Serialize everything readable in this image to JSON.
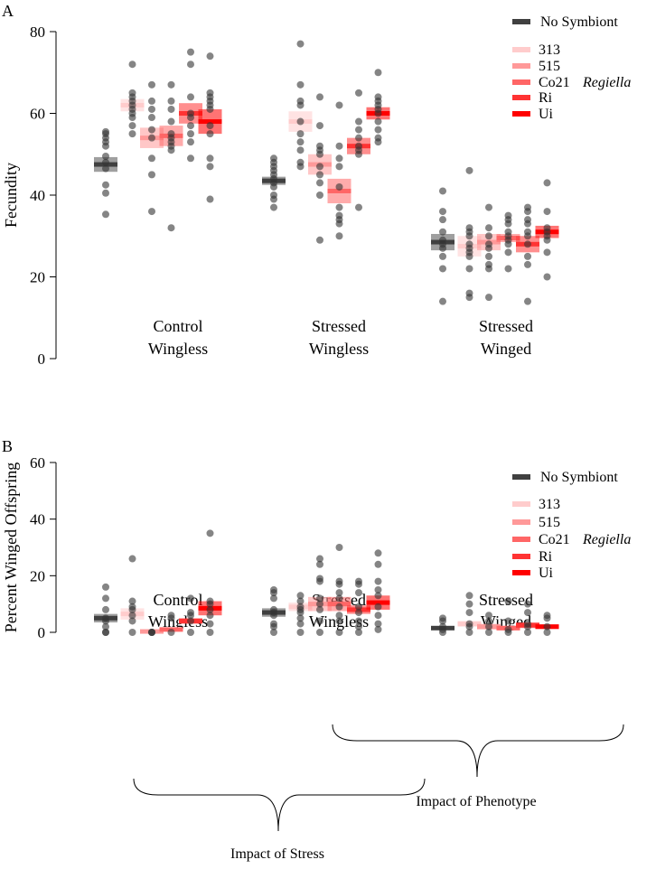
{
  "colors": {
    "No Symbiont": "#404040",
    "313": "#ffcccc",
    "515": "#ff9999",
    "Co21": "#ff6666",
    "Ri": "#ff3333",
    "Ui": "#ff0000"
  },
  "annotations": {
    "stress": "Impact of Stress",
    "phenotype": "Impact of Phenotype"
  },
  "chart_data": [
    {
      "type": "scatter",
      "panel": "A",
      "title": "",
      "ylabel": "Fecundity",
      "xlabel": "",
      "ylim": [
        0,
        80
      ],
      "yticks": [
        0,
        20,
        40,
        60,
        80
      ],
      "categories": [
        [
          "Control",
          "Wingless"
        ],
        [
          "Stressed",
          "Wingless"
        ],
        [
          "Stressed",
          "Winged"
        ]
      ],
      "legend": {
        "placement": "top-right",
        "entries": [
          "No Symbiont",
          "313",
          "515",
          "Co21",
          "Ri",
          "Ui"
        ],
        "group_label": "Regiella"
      },
      "series": [
        {
          "name": "No Symbiont",
          "means": [
            47.5,
            43.5,
            28.5
          ],
          "se": [
            1.8,
            1,
            2
          ],
          "points": [
            [
              55.5,
              55,
              54,
              53,
              52,
              49.5,
              48,
              46.5,
              42.5,
              40.5,
              35.3
            ],
            [
              49,
              48,
              47,
              46,
              45,
              44,
              43,
              42,
              40,
              39,
              37
            ],
            [
              41,
              36,
              34,
              31,
              29,
              28,
              27,
              25,
              22,
              14
            ]
          ]
        },
        {
          "name": "313",
          "means": [
            62,
            58,
            27.5
          ],
          "se": [
            1.5,
            2.5,
            2.5
          ],
          "points": [
            [
              72,
              65,
              64,
              63,
              62,
              61,
              60,
              59,
              57,
              55
            ],
            [
              77,
              67,
              63,
              62,
              58,
              55,
              53,
              51,
              48,
              47
            ],
            [
              46,
              32,
              31,
              30,
              28,
              27,
              26,
              25,
              22,
              16,
              15
            ]
          ]
        },
        {
          "name": "515",
          "means": [
            54,
            47.5,
            28.5
          ],
          "se": [
            2.5,
            2.5,
            2
          ],
          "points": [
            [
              67,
              63,
              61,
              59,
              56,
              54,
              49,
              45,
              36
            ],
            [
              64,
              57,
              52,
              51,
              50,
              47,
              45,
              43,
              40,
              29
            ],
            [
              37,
              32,
              30,
              28,
              27,
              25,
              23,
              22,
              15
            ]
          ]
        },
        {
          "name": "Co21",
          "means": [
            54.5,
            41,
            29.5
          ],
          "se": [
            2.5,
            3,
            1
          ],
          "points": [
            [
              67,
              63,
              61,
              58,
              55,
              54,
              53,
              52,
              51,
              32
            ],
            [
              62,
              52,
              49,
              47,
              42,
              37,
              35,
              34,
              33,
              30
            ],
            [
              35,
              34,
              33,
              31,
              30,
              29,
              28,
              26,
              22
            ]
          ]
        },
        {
          "name": "Ri",
          "means": [
            60,
            52,
            28
          ],
          "se": [
            2.5,
            2,
            2
          ],
          "points": [
            [
              75,
              72,
              64,
              60,
              59,
              57,
              55,
              53,
              49
            ],
            [
              65,
              58,
              56,
              54,
              52,
              51,
              50,
              37
            ],
            [
              37,
              36,
              34,
              33,
              31,
              30,
              28,
              25,
              23,
              14
            ]
          ]
        },
        {
          "name": "Ui",
          "means": [
            58,
            60,
            31
          ],
          "se": [
            3,
            1.5,
            1.5
          ],
          "points": [
            [
              74,
              65,
              64,
              63,
              62,
              61,
              57,
              55,
              49,
              47,
              39
            ],
            [
              70,
              64,
              63,
              62,
              61,
              60,
              58,
              56,
              54,
              53
            ],
            [
              43,
              36,
              32,
              31,
              30,
              29,
              26,
              20
            ]
          ]
        }
      ]
    },
    {
      "type": "scatter",
      "panel": "B",
      "title": "",
      "ylabel": "Percent Winged Offspring",
      "xlabel": "",
      "ylim": [
        0,
        60
      ],
      "yticks": [
        0,
        20,
        40,
        60
      ],
      "categories": [
        [
          "Control",
          "Wingless"
        ],
        [
          "Stressed",
          "Wingless"
        ],
        [
          "Stressed",
          "Winged"
        ]
      ],
      "legend": {
        "placement": "right",
        "entries": [
          "No Symbiont",
          "313",
          "515",
          "Co21",
          "Ri",
          "Ui"
        ],
        "group_label": "Regiella"
      },
      "series": [
        {
          "name": "No Symbiont",
          "means": [
            5,
            7,
            1.5
          ],
          "se": [
            1.5,
            1.5,
            0.5
          ],
          "points": [
            [
              16,
              12,
              8,
              5,
              4,
              2,
              0,
              0
            ],
            [
              15,
              14,
              12,
              8,
              7,
              6,
              3,
              2,
              0
            ],
            [
              5,
              4,
              2,
              1,
              0
            ]
          ]
        },
        {
          "name": "313",
          "means": [
            6.5,
            9,
            3
          ],
          "se": [
            2,
            1.5,
            1
          ]
        },
        {
          "name": "515",
          "means": [
            0.3,
            10,
            2
          ],
          "se": [
            0.3,
            2.5,
            1
          ]
        },
        {
          "name": "Co21",
          "means": [
            1,
            10,
            1.5
          ],
          "se": [
            0.5,
            2.5,
            0.8
          ]
        },
        {
          "name": "Ri",
          "means": [
            4,
            8,
            2.5
          ],
          "se": [
            1,
            1.5,
            1
          ]
        },
        {
          "name": "Ui",
          "means": [
            8.5,
            10.5,
            2
          ],
          "se": [
            2.5,
            2.5,
            0.8
          ]
        }
      ],
      "points_extra": {
        "313": [
          [
            26,
            11,
            9,
            8,
            6,
            4,
            0
          ],
          [
            13,
            11,
            9,
            8,
            7,
            5,
            3,
            0
          ],
          [
            13,
            10,
            7,
            3,
            2,
            0
          ]
        ],
        "515": [
          [
            0,
            0,
            0
          ],
          [
            26,
            24,
            19,
            18,
            12,
            10,
            8,
            4,
            0
          ],
          [
            6,
            4,
            2,
            0
          ]
        ],
        "Co21": [
          [
            6,
            5,
            0
          ],
          [
            30,
            18,
            17,
            14,
            12,
            9,
            6,
            4,
            0
          ],
          [
            11,
            4,
            1,
            0
          ]
        ],
        "Ri": [
          [
            12,
            7,
            6,
            4,
            0
          ],
          [
            18,
            17,
            14,
            9,
            7,
            4,
            2,
            0
          ],
          [
            10,
            7,
            3,
            2,
            0
          ]
        ],
        "Ui": [
          [
            35,
            11,
            10,
            8,
            6,
            3,
            0
          ],
          [
            28,
            24,
            18,
            15,
            13,
            9,
            6,
            3,
            1
          ],
          [
            6,
            5,
            2,
            0
          ]
        ]
      }
    }
  ]
}
